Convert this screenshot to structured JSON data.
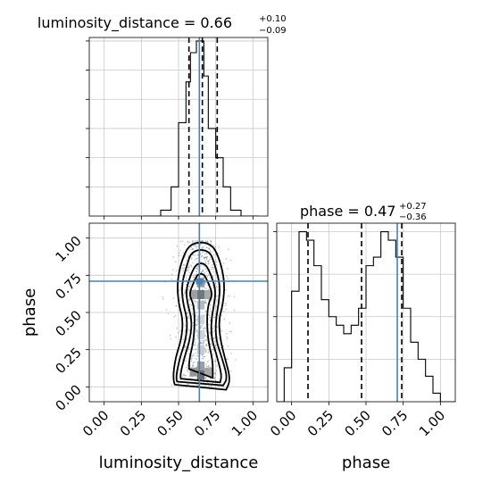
{
  "chart_data": [
    {
      "type": "histogram",
      "panel": "luminosity_distance marginal",
      "title_main": "luminosity_distance = 0.66",
      "title_sup": "+0.10",
      "title_sub": "−0.09",
      "xlim": [
        -0.1,
        1.1
      ],
      "bins": [
        {
          "x0": 0.38,
          "x1": 0.45,
          "count": 1
        },
        {
          "x0": 0.45,
          "x1": 0.5,
          "count": 5
        },
        {
          "x0": 0.5,
          "x1": 0.55,
          "count": 16
        },
        {
          "x0": 0.55,
          "x1": 0.58,
          "count": 23
        },
        {
          "x0": 0.58,
          "x1": 0.62,
          "count": 28
        },
        {
          "x0": 0.62,
          "x1": 0.67,
          "count": 30
        },
        {
          "x0": 0.67,
          "x1": 0.7,
          "count": 24
        },
        {
          "x0": 0.7,
          "x1": 0.75,
          "count": 15
        },
        {
          "x0": 0.75,
          "x1": 0.8,
          "count": 10
        },
        {
          "x0": 0.8,
          "x1": 0.85,
          "count": 5
        },
        {
          "x0": 0.85,
          "x1": 0.92,
          "count": 1
        }
      ],
      "ymax": 30,
      "quantile_lines": [
        0.57,
        0.66,
        0.76
      ],
      "truth": 0.64,
      "grid": true
    },
    {
      "type": "scatter",
      "panel": "2d density",
      "x_param": "luminosity_distance",
      "y_param": "phase",
      "xlim": [
        -0.1,
        1.1
      ],
      "ylim": [
        -0.1,
        1.1
      ],
      "truth": {
        "x": 0.64,
        "y": 0.71
      },
      "grid": true,
      "density_bins": [
        {
          "x": 0.65,
          "y": 0.08,
          "shade": 0.85
        },
        {
          "x": 0.65,
          "y": 0.14,
          "shade": 0.55
        },
        {
          "x": 0.6,
          "y": 0.1,
          "shade": 0.6
        },
        {
          "x": 0.7,
          "y": 0.1,
          "shade": 0.5
        },
        {
          "x": 0.65,
          "y": 0.62,
          "shade": 0.8
        },
        {
          "x": 0.6,
          "y": 0.62,
          "shade": 0.55
        },
        {
          "x": 0.7,
          "y": 0.62,
          "shade": 0.5
        },
        {
          "x": 0.65,
          "y": 0.7,
          "shade": 0.6
        },
        {
          "x": 0.65,
          "y": 0.55,
          "shade": 0.4
        },
        {
          "x": 0.65,
          "y": 0.45,
          "shade": 0.25
        },
        {
          "x": 0.65,
          "y": 0.35,
          "shade": 0.25
        },
        {
          "x": 0.65,
          "y": 0.25,
          "shade": 0.3
        }
      ],
      "contours": [
        {
          "level": 1,
          "waist": [
            [
              0.06,
              0.08,
              0.08
            ],
            [
              0.18,
              0.08,
              0.08
            ],
            [
              0.3,
              0.05,
              0.05
            ],
            [
              0.45,
              0.04,
              0.04
            ],
            [
              0.56,
              0.05,
              0.05
            ],
            [
              0.62,
              0.08,
              0.08
            ],
            [
              0.7,
              0.05,
              0.05
            ],
            [
              0.76,
              0.02,
              0.02
            ]
          ]
        },
        {
          "level": 2,
          "waist": [
            [
              0.03,
              0.13,
              0.13
            ],
            [
              0.08,
              0.14,
              0.14
            ],
            [
              0.2,
              0.11,
              0.11
            ],
            [
              0.33,
              0.07,
              0.07
            ],
            [
              0.45,
              0.06,
              0.07
            ],
            [
              0.56,
              0.09,
              0.09
            ],
            [
              0.65,
              0.1,
              0.1
            ],
            [
              0.75,
              0.07,
              0.07
            ],
            [
              0.83,
              0.03,
              0.03
            ]
          ]
        },
        {
          "level": 3,
          "waist": [
            [
              0.01,
              0.15,
              0.15
            ],
            [
              0.06,
              0.17,
              0.18
            ],
            [
              0.2,
              0.14,
              0.14
            ],
            [
              0.32,
              0.1,
              0.1
            ],
            [
              0.45,
              0.09,
              0.1
            ],
            [
              0.56,
              0.12,
              0.12
            ],
            [
              0.68,
              0.13,
              0.13
            ],
            [
              0.8,
              0.1,
              0.1
            ],
            [
              0.92,
              0.06,
              0.06
            ]
          ]
        },
        {
          "level": 4,
          "waist": [
            [
              -0.02,
              0.16,
              0.17
            ],
            [
              0.05,
              0.19,
              0.2
            ],
            [
              0.2,
              0.17,
              0.16
            ],
            [
              0.32,
              0.13,
              0.13
            ],
            [
              0.45,
              0.12,
              0.12
            ],
            [
              0.56,
              0.15,
              0.15
            ],
            [
              0.7,
              0.16,
              0.16
            ],
            [
              0.85,
              0.13,
              0.13
            ],
            [
              0.97,
              0.07,
              0.07
            ]
          ]
        }
      ]
    },
    {
      "type": "histogram",
      "panel": "phase marginal",
      "title_main": "phase = 0.47",
      "title_sup": "+0.27",
      "title_sub": "−0.36",
      "xlim": [
        -0.1,
        1.1
      ],
      "bins": [
        {
          "x0": -0.05,
          "x1": 0.0,
          "count": 4
        },
        {
          "x0": 0.0,
          "x1": 0.05,
          "count": 13
        },
        {
          "x0": 0.05,
          "x1": 0.1,
          "count": 20
        },
        {
          "x0": 0.1,
          "x1": 0.15,
          "count": 19
        },
        {
          "x0": 0.15,
          "x1": 0.2,
          "count": 16
        },
        {
          "x0": 0.2,
          "x1": 0.25,
          "count": 12
        },
        {
          "x0": 0.25,
          "x1": 0.3,
          "count": 10
        },
        {
          "x0": 0.3,
          "x1": 0.35,
          "count": 9
        },
        {
          "x0": 0.35,
          "x1": 0.4,
          "count": 8
        },
        {
          "x0": 0.4,
          "x1": 0.45,
          "count": 9
        },
        {
          "x0": 0.45,
          "x1": 0.5,
          "count": 11
        },
        {
          "x0": 0.5,
          "x1": 0.55,
          "count": 16
        },
        {
          "x0": 0.55,
          "x1": 0.6,
          "count": 17
        },
        {
          "x0": 0.6,
          "x1": 0.65,
          "count": 20
        },
        {
          "x0": 0.65,
          "x1": 0.7,
          "count": 19
        },
        {
          "x0": 0.7,
          "x1": 0.75,
          "count": 17
        },
        {
          "x0": 0.75,
          "x1": 0.8,
          "count": 11
        },
        {
          "x0": 0.8,
          "x1": 0.85,
          "count": 7
        },
        {
          "x0": 0.85,
          "x1": 0.9,
          "count": 5
        },
        {
          "x0": 0.9,
          "x1": 0.95,
          "count": 3
        },
        {
          "x0": 0.95,
          "x1": 1.0,
          "count": 1
        }
      ],
      "ymax": 20,
      "quantile_lines": [
        0.11,
        0.47,
        0.74
      ],
      "truth": 0.71,
      "grid": true
    }
  ],
  "axes": {
    "xlabel_left": "luminosity_distance",
    "xlabel_right": "phase",
    "ylabel": "phase",
    "ticks": [
      {
        "value": 0.0,
        "label": "0.00"
      },
      {
        "value": 0.25,
        "label": "0.25"
      },
      {
        "value": 0.5,
        "label": "0.50"
      },
      {
        "value": 0.75,
        "label": "0.75"
      },
      {
        "value": 1.0,
        "label": "1.00"
      }
    ]
  },
  "colors": {
    "truth": "#4682b4",
    "grid": "#c8c8c8",
    "line": "#000000"
  }
}
